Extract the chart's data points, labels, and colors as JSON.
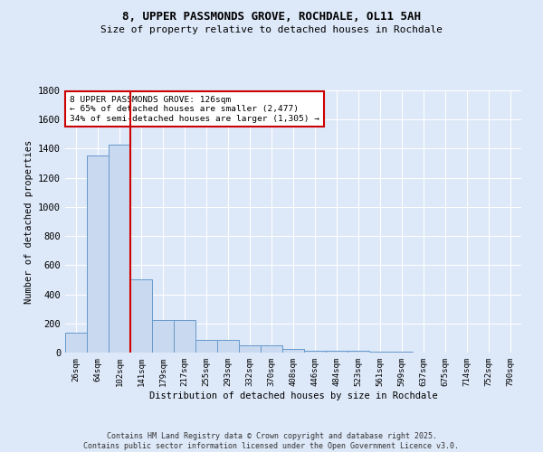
{
  "title1": "8, UPPER PASSMONDS GROVE, ROCHDALE, OL11 5AH",
  "title2": "Size of property relative to detached houses in Rochdale",
  "xlabel": "Distribution of detached houses by size in Rochdale",
  "ylabel": "Number of detached properties",
  "categories": [
    "26sqm",
    "64sqm",
    "102sqm",
    "141sqm",
    "179sqm",
    "217sqm",
    "255sqm",
    "293sqm",
    "332sqm",
    "370sqm",
    "408sqm",
    "446sqm",
    "484sqm",
    "523sqm",
    "561sqm",
    "599sqm",
    "637sqm",
    "675sqm",
    "714sqm",
    "752sqm",
    "790sqm"
  ],
  "values": [
    135,
    1355,
    1430,
    500,
    225,
    225,
    85,
    85,
    50,
    50,
    25,
    15,
    15,
    10,
    8,
    5,
    3,
    2,
    2,
    1,
    0
  ],
  "bar_color": "#c9d9f0",
  "bar_edge_color": "#6699cc",
  "vline_x": 2.5,
  "vline_color": "#cc0000",
  "annotation_text": "8 UPPER PASSMONDS GROVE: 126sqm\n← 65% of detached houses are smaller (2,477)\n34% of semi-detached houses are larger (1,305) →",
  "annotation_box_color": "#ffffff",
  "annotation_box_edge": "#cc0000",
  "ylim": [
    0,
    1800
  ],
  "yticks": [
    0,
    200,
    400,
    600,
    800,
    1000,
    1200,
    1400,
    1600,
    1800
  ],
  "bg_color": "#dde8f8",
  "grid_color": "#ffffff",
  "footer": "Contains HM Land Registry data © Crown copyright and database right 2025.\nContains public sector information licensed under the Open Government Licence v3.0."
}
